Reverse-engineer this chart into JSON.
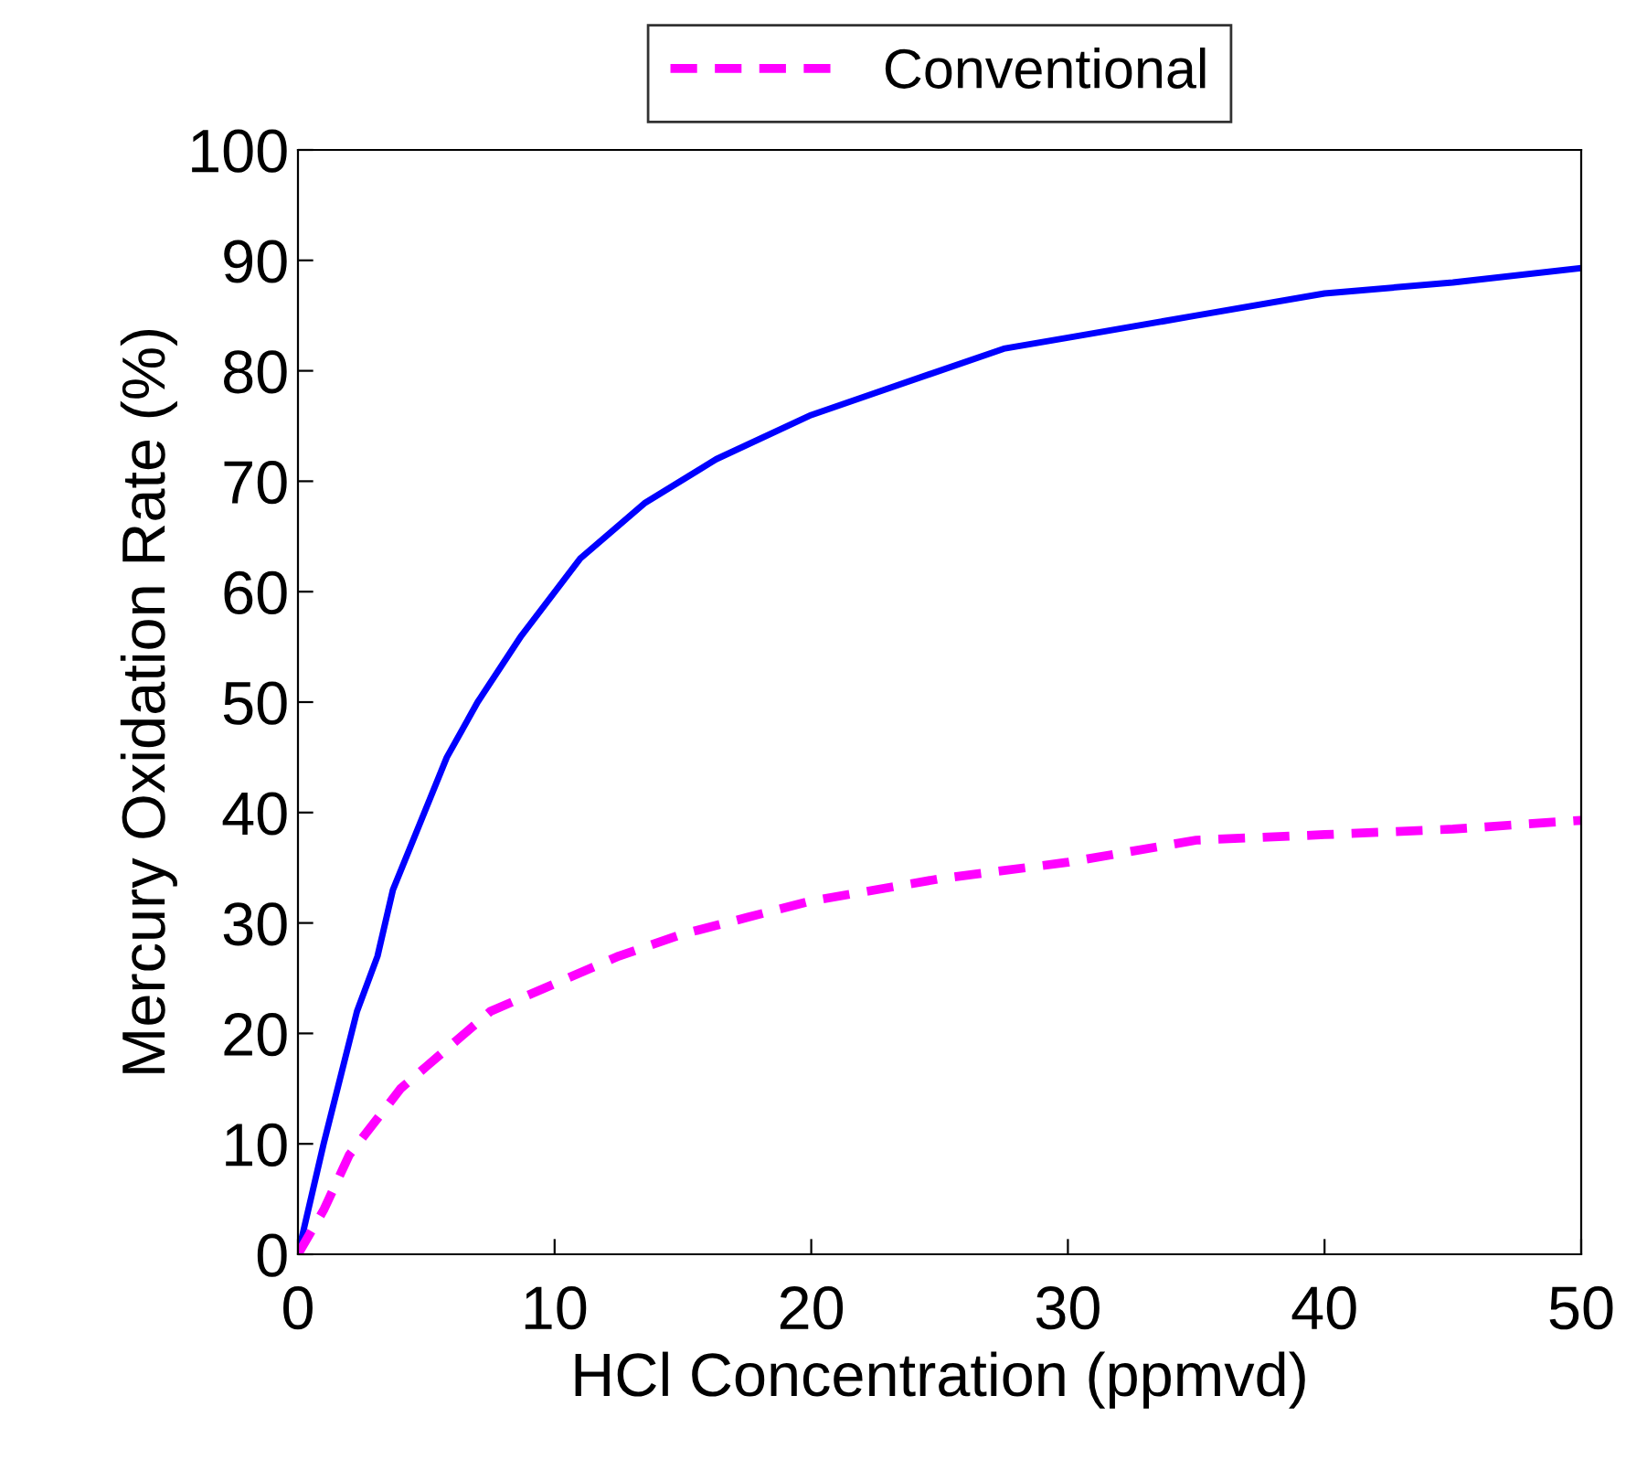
{
  "chart_data": {
    "type": "line",
    "xlabel": "HCl Concentration (ppmvd)",
    "ylabel": "Mercury Oxidation Rate (%)",
    "xlim": [
      0,
      50
    ],
    "ylim": [
      0,
      100
    ],
    "xticks": [
      0,
      10,
      20,
      30,
      40,
      50
    ],
    "yticks": [
      0,
      10,
      20,
      30,
      40,
      50,
      60,
      70,
      80,
      90,
      100
    ],
    "grid": false,
    "legend": "top",
    "series": [
      {
        "color": "#0000ff",
        "line_style": "solid",
        "x": [
          0,
          1,
          2.3,
          3.1,
          3.7,
          5.1,
          5.8,
          7,
          8.7,
          11,
          13.5,
          16.3,
          20,
          22.5,
          27.5,
          30,
          35,
          40,
          45,
          50
        ],
        "values": [
          0,
          10,
          22,
          27,
          33,
          41,
          45,
          50,
          56,
          63,
          68,
          72,
          76,
          78,
          82,
          83,
          85,
          87,
          88,
          89.3
        ]
      },
      {
        "name": "Conventional",
        "color": "#ff00ff",
        "line_style": "dashed",
        "x": [
          0,
          1,
          2,
          3,
          4,
          5,
          6,
          7.5,
          10,
          12.5,
          15,
          17.5,
          20,
          25,
          30,
          35,
          40,
          45,
          50
        ],
        "values": [
          0,
          4,
          9,
          12,
          15,
          17,
          19,
          22,
          24.5,
          27,
          29,
          30.5,
          32,
          34,
          35.5,
          37.5,
          38,
          38.5,
          39.3
        ]
      }
    ]
  }
}
